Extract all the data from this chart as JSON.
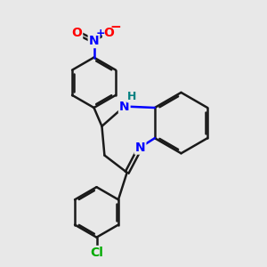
{
  "bg_color": "#e8e8e8",
  "bond_color": "#1a1a1a",
  "N_color": "#0000ff",
  "O_color": "#ff0000",
  "Cl_color": "#00aa00",
  "H_color": "#008080",
  "bond_width": 1.8,
  "font_size_atom": 10,
  "xlim": [
    0,
    10
  ],
  "ylim": [
    0,
    10
  ]
}
